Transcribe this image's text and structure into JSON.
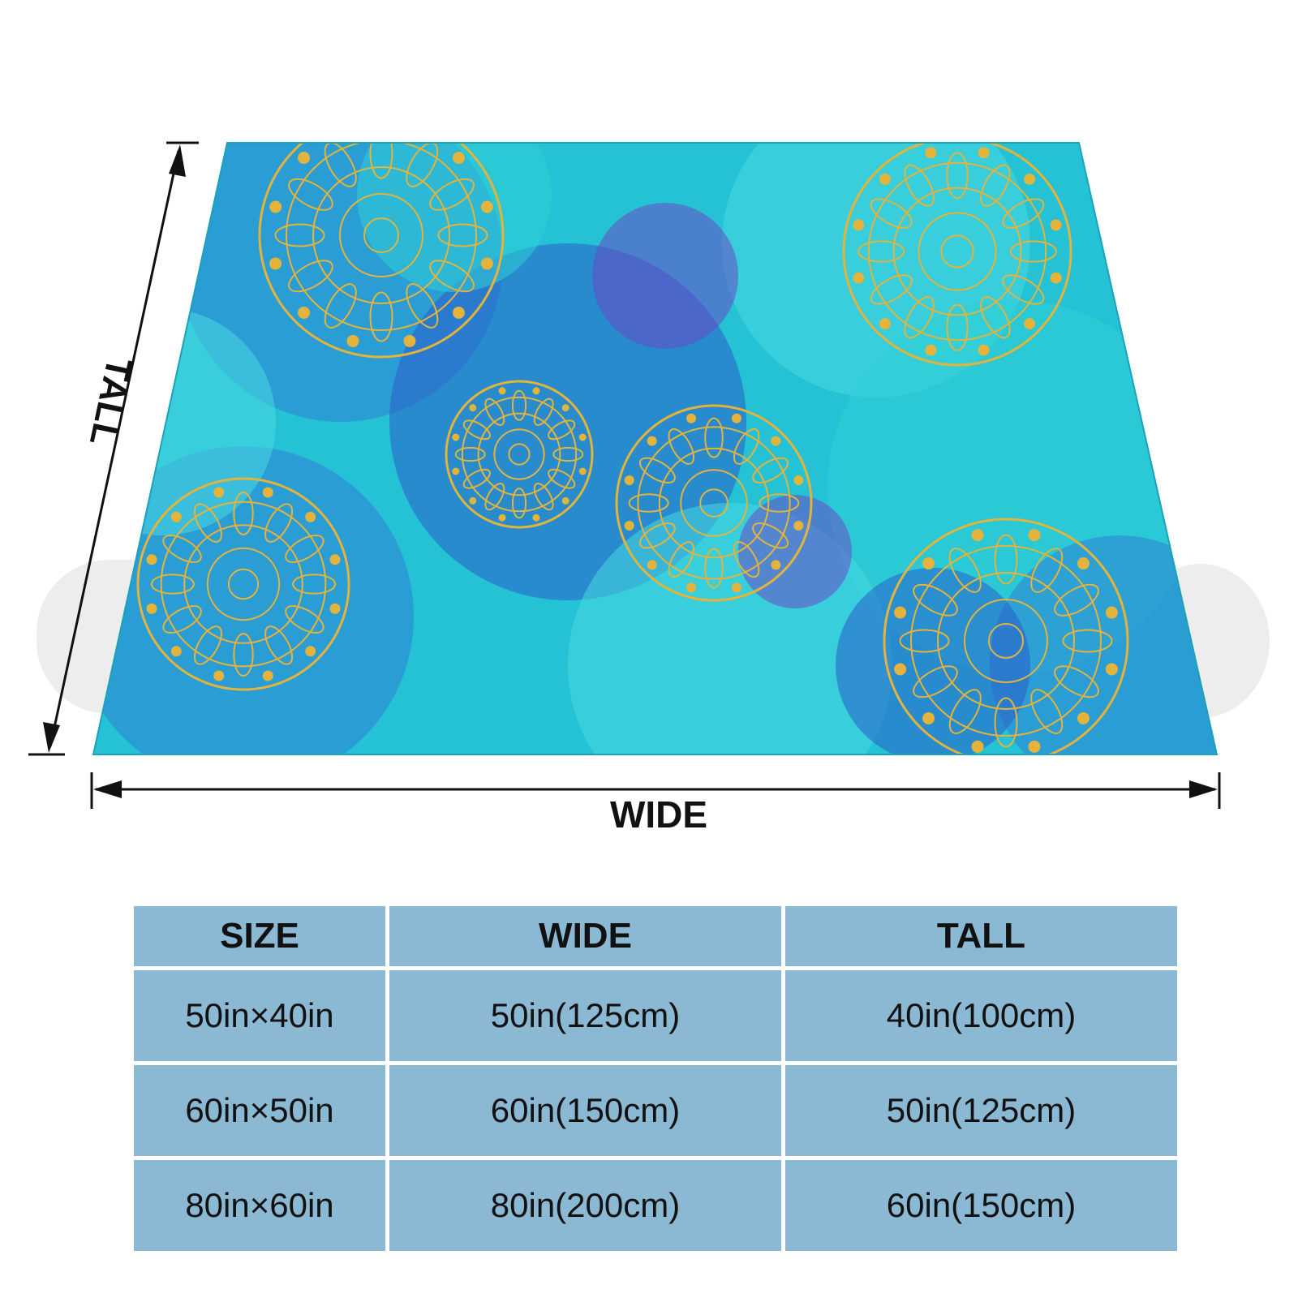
{
  "diagram": {
    "tall_label": "TALL",
    "wide_label": "WIDE",
    "pattern": {
      "description_colors": {
        "turquoise": "#2fcfd6",
        "aqua": "#49d9e0",
        "blue": "#2f7fd4",
        "deep_blue": "#2a5fc8",
        "purple": "#6a4bc4",
        "gold": "#e3b33c"
      }
    }
  },
  "size_table": {
    "headers": [
      "SIZE",
      "WIDE",
      "TALL"
    ],
    "rows": [
      [
        "50in×40in",
        "50in(125cm)",
        "40in(100cm)"
      ],
      [
        "60in×50in",
        "60in(150cm)",
        "50in(125cm)"
      ],
      [
        "80in×60in",
        "80in(200cm)",
        "60in(150cm)"
      ]
    ],
    "cell_color": "#8bb8d2"
  }
}
